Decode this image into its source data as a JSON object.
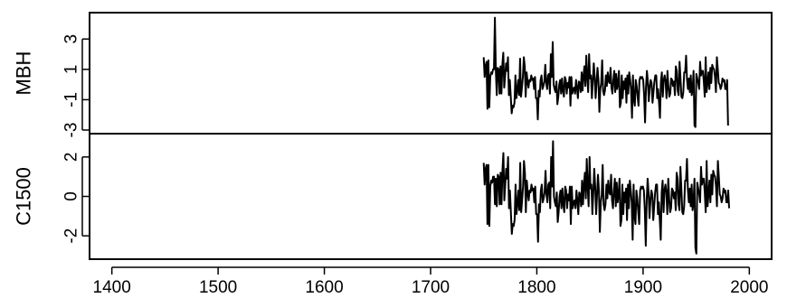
{
  "chart_data": {
    "type": "line",
    "x": {
      "range": [
        1400,
        2000
      ],
      "ticks": [
        1400,
        1500,
        1600,
        1700,
        1800,
        1900,
        2000
      ],
      "tick_labels": [
        "1400",
        "1500",
        "1600",
        "1700",
        "1800",
        "1900",
        "2000"
      ]
    },
    "panels": [
      {
        "ylabel": "MBH",
        "ylim": [
          -3,
          4.5
        ],
        "yticks": [
          -3,
          -1,
          1,
          3
        ],
        "ytick_labels": [
          "-3",
          "-1",
          "1",
          "3"
        ],
        "series": [
          {
            "name": "MBH",
            "x_start": 1750,
            "x_end": 1980,
            "values": [
              1.8,
              0.5,
              1.2,
              1.5,
              -1.6,
              1.6,
              -1.5,
              0.5,
              0.8,
              0.7,
              1.0,
              1.0,
              4.4,
              0.9,
              -0.7,
              1.1,
              1.0,
              -0.6,
              1.2,
              -0.6,
              1.3,
              2.1,
              -0.2,
              0.6,
              1.4,
              0.9,
              1.8,
              -0.7,
              0.3,
              -0.8,
              -1.9,
              -1.4,
              -1.5,
              -1.2,
              0.6,
              -0.9,
              -0.4,
              0.3,
              -0.7,
              1.7,
              -0.8,
              -0.2,
              0.5,
              1.8,
              1.2,
              -0.8,
              0.8,
              0.2,
              -0.2,
              0.3,
              0.2,
              0.6,
              0.3,
              0.4,
              -0.3,
              0.5,
              -0.9,
              -0.9,
              -2.3,
              -0.4,
              -0.8,
              0.3,
              0.6,
              -0.3,
              -0.1,
              0.2,
              1.3,
              0.1,
              -0.3,
              0.6,
              0.7,
              -0.6,
              2.0,
              0.5,
              2.8,
              0.0,
              -0.3,
              -0.5,
              0.2,
              -1.3,
              -0.8,
              0.0,
              0.3,
              -0.6,
              0.4,
              -0.4,
              -0.8,
              0.5,
              0.3,
              -0.6,
              0.1,
              -0.2,
              0.5,
              -1.4,
              0.5,
              -0.6,
              -0.3,
              -0.2,
              -0.6,
              0.3,
              -0.2,
              -0.9,
              0.2,
              0.1,
              -0.5,
              0.8,
              -0.4,
              0.6,
              1.2,
              -0.1,
              1.9,
              0.5,
              -0.5,
              2.0,
              0.4,
              0.6,
              -0.9,
              0.2,
              1.4,
              0.5,
              -0.9,
              0.1,
              1.1,
              0.3,
              -1.8,
              -0.3,
              0.1,
              1.6,
              -0.4,
              -0.7,
              -0.4,
              0.6,
              -0.1,
              0.8,
              0.2,
              0.1,
              1.1,
              -0.2,
              -0.6,
              0.3,
              0.9,
              -0.5,
              0.7,
              -0.3,
              0.1,
              0.9,
              -1.5,
              -1.2,
              0.6,
              -0.9,
              0.2,
              -0.3,
              0.4,
              -1.2,
              0.6,
              -0.6,
              0.8,
              0.3,
              -0.3,
              -2.2,
              0.6,
              -1.0,
              -1.4,
              0.3,
              -0.1,
              -0.8,
              -1.4,
              0.3,
              0.5,
              0.4,
              0.5,
              0.3,
              -0.7,
              -2.5,
              -0.2,
              0.9,
              0.2,
              -1.1,
              -0.2,
              0.3,
              0.1,
              -1.2,
              -0.5,
              0.2,
              0.6,
              0.6,
              -0.9,
              -0.3,
              -1.2,
              -2.2,
              0.2,
              0.8,
              -0.8,
              0.3,
              0.6,
              0.2,
              -0.9,
              0.9,
              -0.1,
              -0.8,
              -0.6,
              0.4,
              0.3,
              -0.1,
              0.2,
              -0.7,
              1.2,
              0.9,
              -0.4,
              -0.7,
              1.5,
              0.4,
              -0.8,
              -0.9,
              -0.5,
              0.8,
              0.8,
              1.9,
              0.3,
              -0.3,
              0.4,
              -0.5,
              0.6,
              -0.7,
              -0.3,
              0.9,
              -2.7,
              -2.8,
              0.7,
              0.4,
              0.1,
              -0.3,
              1.5,
              0.6,
              0.9,
              0.9,
              0.2,
              -0.8,
              1.8,
              -0.5,
              0.1,
              0.8,
              -0.3,
              1.1,
              0.1,
              1.3,
              1.1,
              1.0,
              0.5,
              -0.5,
              1.8,
              1.0,
              0.1,
              0.0,
              -0.3,
              -0.1,
              0.4,
              0.2,
              0.3,
              -0.3,
              -0.3,
              0.3,
              -2.7
            ]
          }
        ]
      },
      {
        "ylabel": "C1500",
        "ylim": [
          -3,
          3
        ],
        "yticks": [
          -2,
          0,
          2
        ],
        "ytick_labels": [
          "-2",
          "0",
          "2"
        ],
        "series": [
          {
            "name": "C1500",
            "x_start": 1750,
            "x_end": 1981,
            "values": [
              1.7,
              0.6,
              1.4,
              1.6,
              -1.4,
              1.6,
              -1.5,
              0.5,
              0.8,
              0.7,
              1.0,
              1.0,
              -0.4,
              0.9,
              -0.5,
              1.1,
              1.0,
              -0.4,
              1.2,
              -0.4,
              1.3,
              2.2,
              -0.2,
              0.6,
              1.4,
              0.9,
              2.0,
              -0.6,
              0.3,
              -0.8,
              -1.9,
              -1.4,
              -1.5,
              -1.2,
              0.6,
              -0.9,
              -0.4,
              0.3,
              -0.7,
              1.7,
              -0.8,
              -0.2,
              0.5,
              1.8,
              1.2,
              -0.8,
              0.8,
              0.2,
              -0.2,
              0.3,
              0.2,
              0.6,
              0.3,
              0.4,
              -0.3,
              0.5,
              -0.9,
              -0.9,
              -2.3,
              -0.4,
              -0.8,
              0.3,
              0.6,
              -0.3,
              -0.1,
              0.2,
              1.3,
              0.1,
              -0.3,
              0.6,
              0.7,
              -0.6,
              2.0,
              0.5,
              2.8,
              0.0,
              -0.3,
              -0.5,
              0.2,
              -1.3,
              -0.8,
              0.0,
              0.3,
              -0.6,
              0.4,
              -0.4,
              -0.8,
              0.5,
              0.3,
              -0.6,
              0.1,
              -0.2,
              0.5,
              -1.4,
              0.5,
              -0.6,
              -0.3,
              -0.2,
              -0.6,
              0.3,
              -0.2,
              -0.9,
              0.2,
              0.1,
              -0.5,
              0.8,
              -0.4,
              0.6,
              1.2,
              -0.1,
              1.9,
              0.5,
              -0.5,
              2.0,
              0.4,
              0.6,
              -0.9,
              0.2,
              1.4,
              0.5,
              -0.9,
              0.1,
              1.1,
              0.3,
              -1.8,
              -0.3,
              0.1,
              1.6,
              -0.4,
              -0.7,
              -0.4,
              0.6,
              -0.1,
              0.8,
              0.2,
              0.1,
              1.1,
              -0.2,
              -0.6,
              0.3,
              0.9,
              -0.5,
              0.7,
              -0.3,
              0.1,
              0.9,
              -1.5,
              -1.2,
              0.6,
              -0.9,
              0.2,
              -0.3,
              0.4,
              -1.2,
              0.6,
              -0.6,
              0.8,
              0.3,
              -0.3,
              -2.2,
              0.6,
              -1.0,
              -1.4,
              0.3,
              -0.1,
              -0.8,
              -1.4,
              0.3,
              0.5,
              0.4,
              0.5,
              0.3,
              -0.7,
              -2.5,
              -0.2,
              0.9,
              0.2,
              -1.1,
              -0.2,
              0.3,
              0.1,
              -1.2,
              -0.5,
              0.2,
              0.6,
              0.6,
              -0.9,
              -0.3,
              -1.2,
              -2.2,
              0.2,
              0.8,
              -0.8,
              0.3,
              0.6,
              0.2,
              -0.9,
              0.9,
              -0.1,
              -0.8,
              -0.6,
              0.4,
              0.3,
              -0.1,
              0.2,
              -0.7,
              1.2,
              0.9,
              -0.4,
              -0.7,
              1.5,
              0.4,
              -0.8,
              -0.9,
              -0.5,
              0.8,
              0.8,
              1.9,
              0.3,
              -0.3,
              0.4,
              -0.5,
              0.6,
              -0.7,
              -0.3,
              0.9,
              -2.6,
              -2.9,
              0.7,
              0.4,
              0.1,
              -0.3,
              1.5,
              0.6,
              0.9,
              0.9,
              0.2,
              -0.8,
              1.8,
              -0.5,
              0.1,
              0.8,
              -0.3,
              1.1,
              0.1,
              1.3,
              1.1,
              1.0,
              0.5,
              -0.5,
              1.8,
              1.0,
              0.1,
              0.0,
              -0.3,
              -0.1,
              0.4,
              0.2,
              0.3,
              -0.3,
              -0.3,
              0.3,
              -0.6
            ]
          }
        ]
      }
    ],
    "grid": false,
    "legend": "none"
  }
}
